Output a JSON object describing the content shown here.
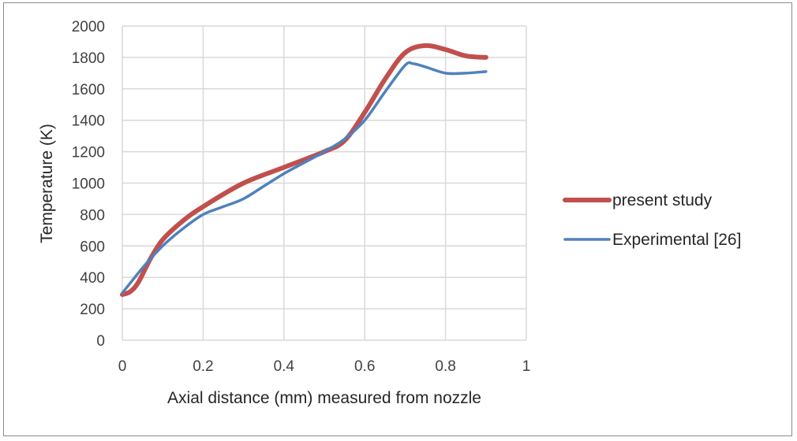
{
  "chart_data": {
    "type": "line",
    "title": "",
    "xlabel": "Axial distance (mm) measured from nozzle",
    "ylabel": "Temperature (K)",
    "xlim": [
      0,
      1
    ],
    "ylim": [
      0,
      2000
    ],
    "xticks": [
      0,
      0.2,
      0.4,
      0.6,
      0.8,
      1
    ],
    "xtick_labels": [
      "0",
      "0.2",
      "0.4",
      "0.6",
      "0.8",
      "1"
    ],
    "yticks": [
      0,
      200,
      400,
      600,
      800,
      1000,
      1200,
      1400,
      1600,
      1800,
      2000
    ],
    "ytick_labels": [
      "0",
      "200",
      "400",
      "600",
      "800",
      "1000",
      "1200",
      "1400",
      "1600",
      "1800",
      "2000"
    ],
    "grid": true,
    "legend_position": "right",
    "series": [
      {
        "name": "present study",
        "color": "#c0504d",
        "x": [
          0,
          0.02,
          0.04,
          0.07,
          0.1,
          0.15,
          0.2,
          0.3,
          0.4,
          0.5,
          0.55,
          0.6,
          0.65,
          0.7,
          0.75,
          0.8,
          0.85,
          0.9
        ],
        "y": [
          290,
          310,
          370,
          520,
          640,
          760,
          850,
          1000,
          1100,
          1200,
          1270,
          1450,
          1660,
          1830,
          1875,
          1850,
          1810,
          1800
        ]
      },
      {
        "name": "Experimental [26]",
        "color": "#4f81bd",
        "x": [
          0,
          0.05,
          0.1,
          0.15,
          0.2,
          0.25,
          0.3,
          0.35,
          0.4,
          0.45,
          0.5,
          0.55,
          0.6,
          0.65,
          0.7,
          0.72,
          0.75,
          0.8,
          0.85,
          0.9
        ],
        "y": [
          300,
          460,
          600,
          710,
          800,
          850,
          900,
          980,
          1060,
          1130,
          1200,
          1280,
          1400,
          1580,
          1750,
          1760,
          1740,
          1700,
          1700,
          1710
        ]
      }
    ]
  }
}
